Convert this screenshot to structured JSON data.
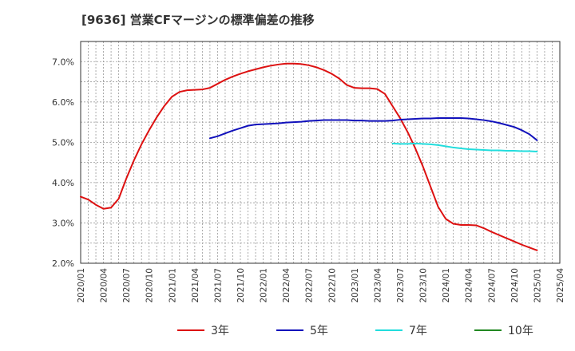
{
  "chart_data": {
    "type": "line",
    "title": "[9636]  営業CFマージンの標準偏差の推移",
    "xlabel": "",
    "ylabel": "",
    "ylim": [
      2.0,
      7.5
    ],
    "yticks": [
      2.0,
      3.0,
      4.0,
      5.0,
      6.0,
      7.0
    ],
    "ytick_labels": [
      "2.0%",
      "3.0%",
      "4.0%",
      "5.0%",
      "6.0%",
      "7.0%"
    ],
    "x_start": "2020-01",
    "x_end": "2025-04",
    "xtick_labels": [
      "2020/01",
      "2020/04",
      "2020/07",
      "2020/10",
      "2021/01",
      "2021/04",
      "2021/07",
      "2021/10",
      "2022/01",
      "2022/04",
      "2022/07",
      "2022/10",
      "2023/01",
      "2023/04",
      "2023/07",
      "2023/10",
      "2024/01",
      "2024/04",
      "2024/07",
      "2024/10",
      "2025/01",
      "2025/04"
    ],
    "grid": true,
    "legend_position": "bottom",
    "series": [
      {
        "name": "3年",
        "color": "#dd1111",
        "x": [
          "2020-01",
          "2020-02",
          "2020-03",
          "2020-04",
          "2020-05",
          "2020-06",
          "2020-07",
          "2020-08",
          "2020-09",
          "2020-10",
          "2020-11",
          "2020-12",
          "2021-01",
          "2021-02",
          "2021-03",
          "2021-04",
          "2021-05",
          "2021-06",
          "2021-07",
          "2021-08",
          "2021-09",
          "2021-10",
          "2021-11",
          "2021-12",
          "2022-01",
          "2022-02",
          "2022-03",
          "2022-04",
          "2022-05",
          "2022-06",
          "2022-07",
          "2022-08",
          "2022-09",
          "2022-10",
          "2022-11",
          "2022-12",
          "2023-01",
          "2023-02",
          "2023-03",
          "2023-04",
          "2023-05",
          "2023-06",
          "2023-07",
          "2023-08",
          "2023-09",
          "2023-10",
          "2023-11",
          "2023-12",
          "2024-01",
          "2024-02",
          "2024-03",
          "2024-04",
          "2024-05",
          "2024-06",
          "2024-07",
          "2024-08",
          "2024-09",
          "2024-10",
          "2024-11",
          "2024-12",
          "2025-01"
        ],
        "values": [
          3.65,
          3.58,
          3.45,
          3.35,
          3.38,
          3.6,
          4.1,
          4.55,
          4.95,
          5.3,
          5.62,
          5.9,
          6.13,
          6.25,
          6.29,
          6.3,
          6.31,
          6.35,
          6.45,
          6.55,
          6.63,
          6.7,
          6.76,
          6.81,
          6.86,
          6.9,
          6.93,
          6.95,
          6.95,
          6.94,
          6.91,
          6.86,
          6.79,
          6.7,
          6.58,
          6.42,
          6.35,
          6.34,
          6.34,
          6.32,
          6.2,
          5.9,
          5.6,
          5.25,
          4.85,
          4.4,
          3.9,
          3.4,
          3.1,
          2.98,
          2.95,
          2.95,
          2.94,
          2.87,
          2.78,
          2.7,
          2.62,
          2.54,
          2.46,
          2.39,
          2.32
        ]
      },
      {
        "name": "5年",
        "color": "#1111bb",
        "x": [
          "2021-06",
          "2021-07",
          "2021-08",
          "2021-09",
          "2021-10",
          "2021-11",
          "2021-12",
          "2022-01",
          "2022-02",
          "2022-03",
          "2022-04",
          "2022-05",
          "2022-06",
          "2022-07",
          "2022-08",
          "2022-09",
          "2022-10",
          "2022-11",
          "2022-12",
          "2023-01",
          "2023-02",
          "2023-03",
          "2023-04",
          "2023-05",
          "2023-06",
          "2023-07",
          "2023-08",
          "2023-09",
          "2023-10",
          "2023-11",
          "2023-12",
          "2024-01",
          "2024-02",
          "2024-03",
          "2024-04",
          "2024-05",
          "2024-06",
          "2024-07",
          "2024-08",
          "2024-09",
          "2024-10",
          "2024-11",
          "2024-12",
          "2025-01"
        ],
        "values": [
          5.1,
          5.15,
          5.22,
          5.29,
          5.35,
          5.41,
          5.44,
          5.45,
          5.46,
          5.47,
          5.49,
          5.5,
          5.51,
          5.53,
          5.54,
          5.55,
          5.55,
          5.55,
          5.55,
          5.54,
          5.54,
          5.53,
          5.53,
          5.53,
          5.54,
          5.56,
          5.57,
          5.58,
          5.59,
          5.59,
          5.6,
          5.6,
          5.6,
          5.6,
          5.59,
          5.57,
          5.55,
          5.52,
          5.48,
          5.43,
          5.38,
          5.3,
          5.2,
          5.05
        ]
      },
      {
        "name": "7年",
        "color": "#22dddd",
        "x": [
          "2023-06",
          "2023-07",
          "2023-08",
          "2023-09",
          "2023-10",
          "2023-11",
          "2023-12",
          "2024-01",
          "2024-02",
          "2024-03",
          "2024-04",
          "2024-05",
          "2024-06",
          "2024-07",
          "2024-08",
          "2024-09",
          "2024-10",
          "2024-11",
          "2024-12",
          "2025-01"
        ],
        "values": [
          4.97,
          4.96,
          4.96,
          4.97,
          4.96,
          4.95,
          4.93,
          4.9,
          4.87,
          4.85,
          4.83,
          4.82,
          4.81,
          4.8,
          4.8,
          4.79,
          4.79,
          4.78,
          4.78,
          4.77
        ]
      },
      {
        "name": "10年",
        "color": "#228822",
        "x": [],
        "values": []
      }
    ]
  }
}
